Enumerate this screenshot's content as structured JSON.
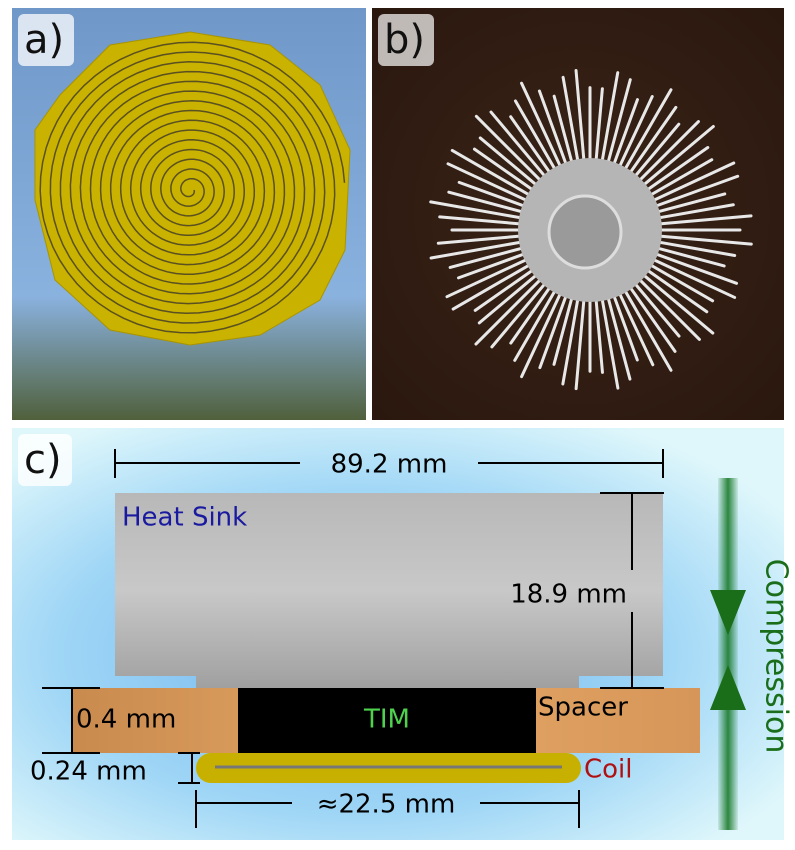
{
  "panels": {
    "a": {
      "label": "a)"
    },
    "b": {
      "label": "b)"
    },
    "c": {
      "label": "c)"
    }
  },
  "diagram": {
    "width_label": "89.2 mm",
    "heat_sink": "Heat Sink",
    "height_label": "18.9 mm",
    "tim": "TIM",
    "spacer": "Spacer",
    "spacer_thickness": "0.4 mm",
    "coil_thickness": "0.24 mm",
    "coil": "Coil",
    "coil_width": "≈22.5 mm",
    "compression": "Compression"
  }
}
